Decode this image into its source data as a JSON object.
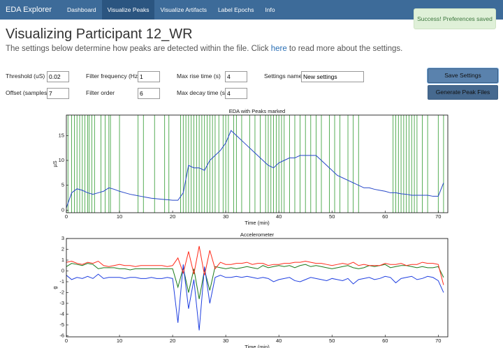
{
  "nav": {
    "brand": "EDA Explorer",
    "items": [
      "Dashboard",
      "Visualize Peaks",
      "Visualize Artifacts",
      "Label Epochs",
      "Info"
    ],
    "active": 1
  },
  "toast": "Success! Preferences saved",
  "header": {
    "title": "Visualizing Participant 12_WR",
    "description": [
      "The settings below determine how peaks are detected within the file. Click ",
      "here",
      " to read more about the settings."
    ]
  },
  "form": {
    "fields": [
      {
        "label": "Threshold (uS)",
        "value": 0.02
      },
      {
        "label": "Filter frequency (Hz)",
        "value": 1
      },
      {
        "label": "Max rise time (s)",
        "value": 4
      },
      {
        "label": "Settings name",
        "value": "New settings"
      },
      {
        "label": "Offset (samples)",
        "value": 7
      },
      {
        "label": "Filter order",
        "value": 6
      },
      {
        "label": "Max decay time (s)",
        "value": 4
      }
    ],
    "buttons": [
      "Save Settings",
      "Generate Peak Files"
    ]
  },
  "chart_data": [
    {
      "type": "line",
      "title": "EDA with Peaks marked",
      "x_label": "Time (min)",
      "y_label": "µS",
      "x": [
        0,
        1,
        2,
        3,
        4,
        5,
        6,
        7,
        8,
        9,
        10,
        11,
        12,
        13,
        14,
        15,
        16,
        17,
        18,
        19,
        20,
        21,
        22,
        23,
        24,
        25,
        26,
        27,
        28,
        29,
        30,
        31,
        32,
        33,
        34,
        35,
        36,
        37,
        38,
        39,
        40,
        41,
        42,
        43,
        44,
        45,
        46,
        47,
        48,
        49,
        50,
        51,
        52,
        53,
        54,
        55,
        56,
        57,
        58,
        59,
        60,
        61,
        62,
        63,
        64,
        65,
        66,
        67,
        68,
        69,
        70,
        71
      ],
      "series": [
        {
          "color": "#2546c8",
          "values": [
            0.5,
            3.5,
            4.3,
            4,
            3.5,
            3.2,
            3.5,
            3.8,
            4.5,
            4.2,
            3.8,
            3.5,
            3.2,
            3.0,
            2.8,
            2.6,
            2.4,
            2.3,
            2.2,
            2.1,
            2.0,
            2.0,
            3.5,
            9,
            8.5,
            8.5,
            8,
            10,
            11,
            12,
            13.5,
            16,
            15,
            14,
            13,
            12,
            11,
            10,
            9,
            8.5,
            9.5,
            10,
            10.5,
            10.5,
            11,
            11,
            11,
            11,
            10,
            9,
            8,
            7,
            6.5,
            6,
            5.5,
            5,
            4.5,
            4.5,
            4.2,
            4,
            3.8,
            3.5,
            3.5,
            3.3,
            3.2,
            3.0,
            3.0,
            3.0,
            3,
            2.8,
            2.8,
            5.5
          ]
        }
      ],
      "peaks": [
        0.3,
        1,
        1.5,
        2,
        2.5,
        3,
        3.5,
        4,
        4.3,
        4.8,
        5.3,
        6.5,
        7.3,
        8,
        8.3,
        10,
        13.5,
        14.5,
        16.6,
        18.5,
        19.3,
        21.5,
        22,
        22.5,
        23,
        23.5,
        24,
        24.5,
        25,
        25.5,
        26,
        26.5,
        27,
        27.5,
        28,
        28.7,
        29.5,
        30,
        30.5,
        31.5,
        32,
        33,
        34.5,
        35.5,
        36.5,
        37.5,
        38,
        38.5,
        39,
        39.5,
        40,
        40.5,
        41,
        42,
        43,
        44,
        45,
        46,
        47,
        48,
        49.5,
        50.5,
        51.5,
        53,
        54,
        55,
        61.5,
        62,
        62.5,
        63,
        63.5,
        64,
        64.5,
        65,
        65.5,
        66,
        67,
        68,
        70,
        71
      ],
      "peak_color": "#2f9a2f",
      "xlim": [
        0,
        71.8
      ],
      "xticks": [
        0,
        10,
        20,
        30,
        40,
        50,
        60,
        70
      ],
      "ylim": [
        -0.5,
        19.1
      ],
      "yticks": [
        0,
        5,
        10,
        15
      ]
    },
    {
      "type": "line",
      "title": "Accelerometer",
      "x_label": "Time (min)",
      "y_label": "g",
      "x": [
        0,
        1,
        2,
        3,
        4,
        5,
        6,
        7,
        8,
        9,
        10,
        11,
        12,
        13,
        14,
        15,
        16,
        17,
        18,
        19,
        20,
        21,
        22,
        23,
        24,
        25,
        26,
        27,
        28,
        29,
        30,
        31,
        32,
        33,
        34,
        35,
        36,
        37,
        38,
        39,
        40,
        41,
        42,
        43,
        44,
        45,
        46,
        47,
        48,
        49,
        50,
        51,
        52,
        53,
        54,
        55,
        56,
        57,
        58,
        59,
        60,
        61,
        62,
        63,
        64,
        65,
        66,
        67,
        68,
        69,
        70,
        71
      ],
      "series": [
        {
          "color": "#1a7a1a",
          "values": [
            0.4,
            0.7,
            0.6,
            0.5,
            0.7,
            0.6,
            0.2,
            0.3,
            0.3,
            0.3,
            0.2,
            0.2,
            0.1,
            0.2,
            0.2,
            0.2,
            0.2,
            0.2,
            0.2,
            0.2,
            0.2,
            -1.5,
            0.3,
            -2.0,
            0.2,
            -2.6,
            0.1,
            -1.8,
            0.4,
            0.3,
            0.2,
            0.3,
            0.2,
            0.3,
            0.4,
            0.3,
            0.2,
            0.5,
            0.3,
            0.4,
            0.5,
            0.4,
            0.5,
            0.3,
            0.5,
            0.6,
            0.4,
            0.5,
            0.4,
            0.3,
            0.2,
            0.3,
            0.4,
            0.5,
            0.3,
            0.2,
            0.3,
            0.5,
            0.4,
            0.5,
            0.6,
            0.3,
            0.4,
            0.5,
            0.5,
            0.4,
            0.3,
            0.4,
            0.3,
            0.3,
            0.4,
            -0.6
          ]
        },
        {
          "color": "#1f3fe0",
          "values": [
            -0.4,
            -0.8,
            -0.6,
            -0.7,
            -0.5,
            -0.7,
            -0.3,
            -0.7,
            -0.6,
            -0.6,
            -0.6,
            -0.7,
            -0.6,
            -0.6,
            -0.7,
            -0.7,
            -0.6,
            -0.7,
            -0.7,
            -0.6,
            -0.7,
            -4.8,
            0.6,
            -3.5,
            -0.8,
            -5.5,
            0.4,
            -3.0,
            -0.6,
            -0.4,
            -0.6,
            -0.6,
            -0.5,
            -0.6,
            -0.5,
            -0.6,
            -0.7,
            -0.6,
            -0.7,
            -1.0,
            -0.8,
            -0.7,
            -0.6,
            -0.9,
            -1.0,
            -0.8,
            -0.6,
            -0.7,
            -0.8,
            -0.9,
            -0.7,
            -0.8,
            -0.9,
            -0.7,
            -1.2,
            -0.8,
            -0.7,
            -0.6,
            -0.8,
            -0.7,
            -0.5,
            -0.6,
            -1.1,
            -0.7,
            -0.6,
            -0.5,
            -0.8,
            -0.7,
            -0.5,
            -0.6,
            -0.9,
            -2.0
          ]
        },
        {
          "color": "#ff2a1a",
          "values": [
            0.8,
            0.9,
            0.7,
            0.6,
            0.8,
            0.7,
            0.9,
            0.5,
            0.4,
            0.5,
            0.6,
            0.5,
            0.5,
            0.4,
            0.5,
            0.5,
            0.5,
            0.5,
            0.5,
            0.4,
            0.5,
            1.2,
            -0.2,
            1.8,
            -0.3,
            2.3,
            -0.4,
            1.9,
            0.2,
            0.8,
            0.6,
            0.6,
            0.7,
            0.7,
            0.8,
            0.6,
            0.7,
            0.7,
            0.5,
            0.6,
            0.6,
            0.7,
            0.7,
            0.8,
            0.8,
            0.9,
            0.8,
            0.7,
            0.7,
            0.6,
            0.5,
            0.6,
            0.7,
            0.6,
            0.8,
            0.5,
            0.6,
            0.5,
            0.5,
            0.5,
            0.7,
            0.6,
            0.6,
            0.7,
            0.5,
            0.6,
            0.6,
            0.8,
            0.7,
            0.7,
            0.6,
            -1.3
          ]
        }
      ],
      "xlim": [
        0,
        71.8
      ],
      "xticks": [
        0,
        10,
        20,
        30,
        40,
        50,
        60,
        70
      ],
      "ylim": [
        -6.1,
        3
      ],
      "yticks": [
        -6,
        -5,
        -4,
        -3,
        -2,
        -1,
        0,
        1,
        2,
        3
      ]
    }
  ]
}
